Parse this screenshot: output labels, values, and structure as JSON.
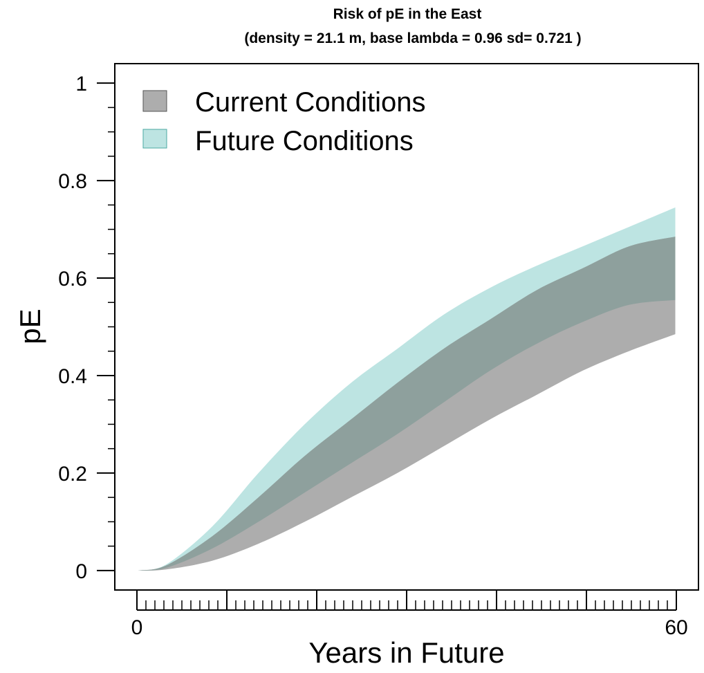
{
  "chart_data": {
    "type": "area",
    "title": "Risk of pE in the East",
    "subtitle": "(density =  21.1 m, base lambda =  0.96 sd= 0.721 )",
    "xlabel": "Years in Future",
    "ylabel": "pE",
    "xlim": [
      -0.5,
      62.5
    ],
    "ylim": [
      -0.04,
      1.04
    ],
    "x_ticks": [
      {
        "value": 0,
        "label": "0"
      },
      {
        "value": 60,
        "label": "60"
      }
    ],
    "y_ticks": [
      {
        "value": 0,
        "label": "0"
      },
      {
        "value": 0.2,
        "label": "0.2"
      },
      {
        "value": 0.4,
        "label": "0.4"
      },
      {
        "value": 0.6,
        "label": "0.6"
      },
      {
        "value": 0.8,
        "label": "0.8"
      },
      {
        "value": 1,
        "label": "1"
      }
    ],
    "legend": {
      "position": "top-left"
    },
    "grid": false,
    "x": [
      2,
      5,
      10,
      15,
      20,
      25,
      30,
      35,
      40,
      45,
      50,
      55,
      60
    ],
    "series": [
      {
        "name": "Current Conditions",
        "color": "#adadad",
        "lower": [
          0,
          0.002,
          0.02,
          0.055,
          0.1,
          0.15,
          0.2,
          0.255,
          0.31,
          0.36,
          0.41,
          0.45,
          0.485
        ],
        "upper": [
          0,
          0.01,
          0.07,
          0.15,
          0.235,
          0.31,
          0.385,
          0.455,
          0.515,
          0.575,
          0.62,
          0.665,
          0.685
        ]
      },
      {
        "name": "Future Conditions",
        "color": "#bde4e2",
        "lower": [
          0,
          0.005,
          0.045,
          0.1,
          0.16,
          0.22,
          0.28,
          0.345,
          0.41,
          0.465,
          0.51,
          0.545,
          0.555
        ],
        "upper": [
          0,
          0.012,
          0.09,
          0.2,
          0.3,
          0.385,
          0.455,
          0.525,
          0.58,
          0.625,
          0.665,
          0.705,
          0.745
        ]
      }
    ],
    "overlap_color": "#8ea09d",
    "legend_border_colors": [
      "#555555",
      "#4aa8a2"
    ]
  }
}
